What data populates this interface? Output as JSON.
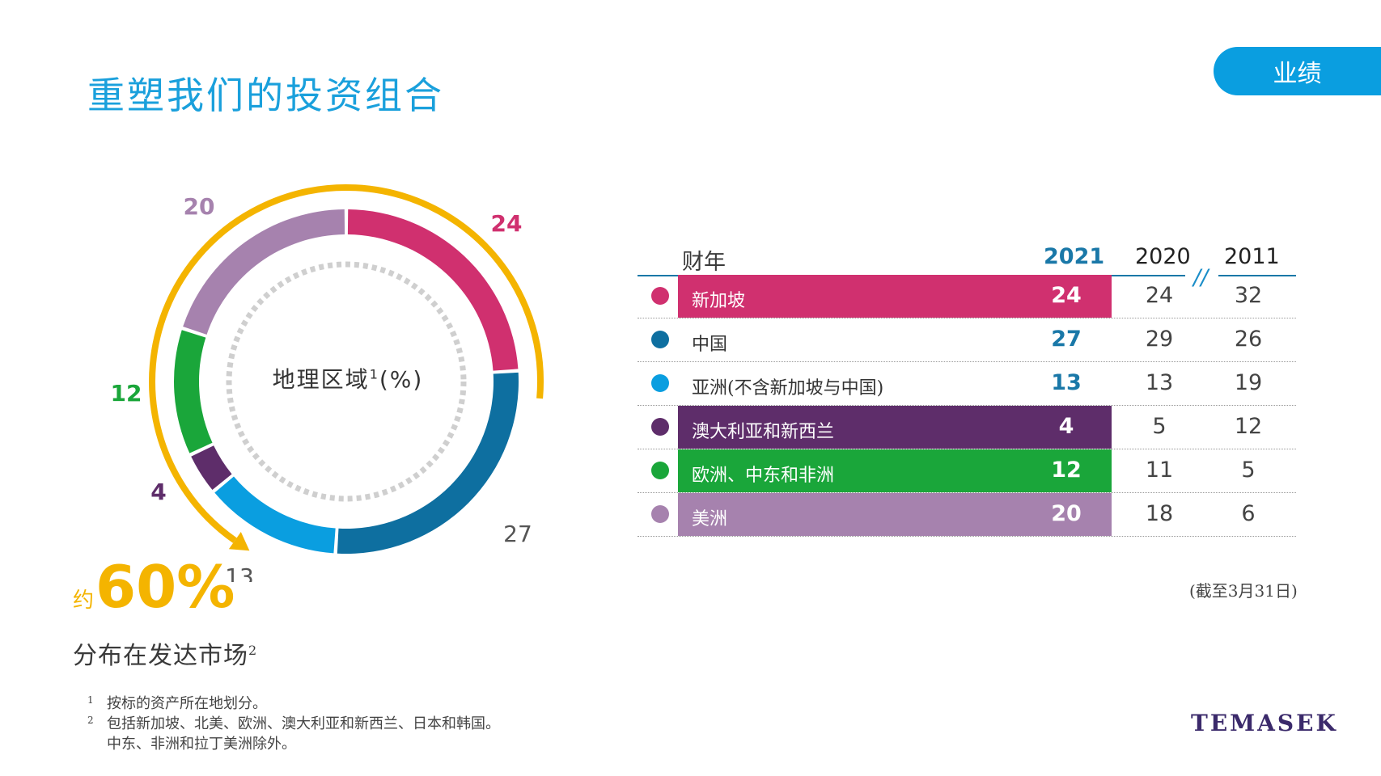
{
  "page": {
    "title": "重塑我们的投资组合",
    "section_badge": "业绩"
  },
  "chart_data": [
    {
      "type": "pie",
      "title": "地理区域",
      "title_sup": "1",
      "title_unit": "(%)",
      "labels": [
        "新加坡",
        "中国",
        "亚洲(不含新加坡与中国)",
        "澳大利亚和新西兰",
        "欧洲、中东和非洲",
        "美洲"
      ],
      "values": [
        24,
        27,
        13,
        4,
        12,
        20
      ],
      "value_labels": [
        "24",
        "27",
        "13",
        "4",
        "12",
        "20"
      ],
      "colors": [
        "#d0306f",
        "#0e6fa0",
        "#0a9ee0",
        "#5e2d6a",
        "#1aa63a",
        "#a682ae"
      ],
      "label_colors": [
        "#d0306f",
        "#555555",
        "#555555",
        "#5e2d6a",
        "#1aa63a",
        "#a682ae"
      ],
      "highlight_arc": {
        "color": "#f4b400",
        "covers": [
          "新加坡",
          "美洲",
          "欧洲、中东和非洲",
          "澳大利亚和新西兰"
        ],
        "value_label": "约60%"
      }
    },
    {
      "type": "table",
      "header_label": "财年",
      "years": [
        "2021",
        "2020",
        "2011"
      ],
      "break_mark": "//",
      "rows": [
        {
          "label": "新加坡",
          "values": [
            "24",
            "24",
            "32"
          ],
          "color": "#d0306f",
          "highlight": true
        },
        {
          "label": "中国",
          "values": [
            "27",
            "29",
            "26"
          ],
          "color": "#0e6fa0",
          "highlight": false
        },
        {
          "label": "亚洲(不含新加坡与中国)",
          "values": [
            "13",
            "13",
            "19"
          ],
          "color": "#0a9ee0",
          "highlight": false
        },
        {
          "label": "澳大利亚和新西兰",
          "values": [
            "4",
            "5",
            "12"
          ],
          "color": "#5e2d6a",
          "highlight": true
        },
        {
          "label": "欧洲、中东和非洲",
          "values": [
            "12",
            "11",
            "5"
          ],
          "color": "#1aa63a",
          "highlight": true
        },
        {
          "label": "美洲",
          "values": [
            "20",
            "18",
            "6"
          ],
          "color": "#a682ae",
          "highlight": true
        }
      ],
      "note": "(截至3月31日)"
    }
  ],
  "summary": {
    "prefix": "约",
    "value": "60%",
    "text": "分布在发达市场",
    "sup": "2"
  },
  "footnotes": [
    {
      "num": "1",
      "text": "按标的资产所在地划分。"
    },
    {
      "num": "2",
      "text": "包括新加坡、北美、欧洲、澳大利亚和新西兰、日本和韩国。"
    },
    {
      "num": "",
      "text": "中东、非洲和拉丁美洲除外。"
    }
  ],
  "logo": "TEMASEK"
}
